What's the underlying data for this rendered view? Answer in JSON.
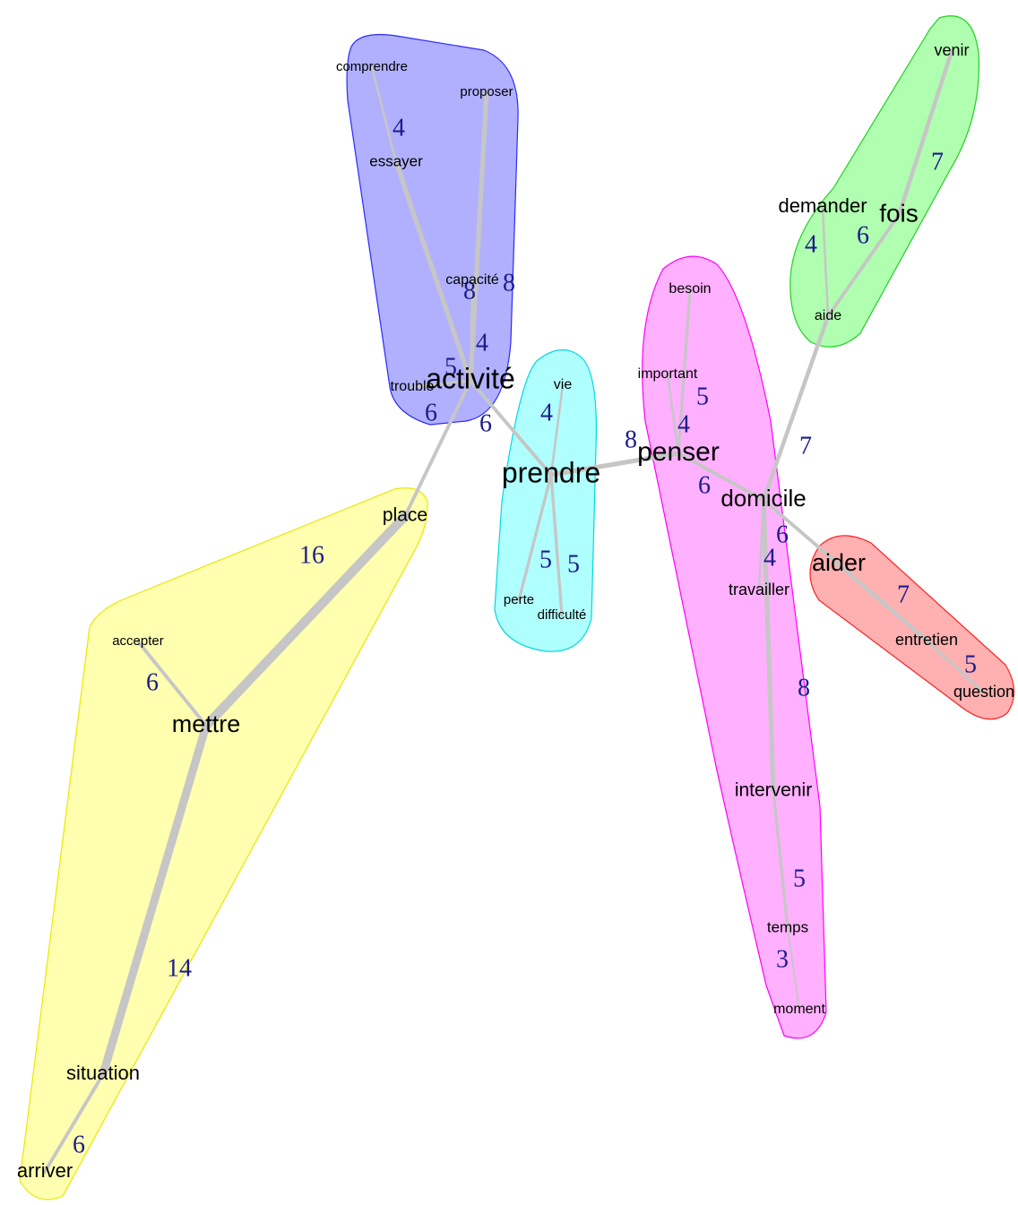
{
  "nodes": [
    {
      "label": "comprendre"
    },
    {
      "label": "proposer"
    },
    {
      "label": "essayer"
    },
    {
      "label": "capacité"
    },
    {
      "label": "trouble"
    },
    {
      "label": "activité"
    },
    {
      "label": "vie"
    },
    {
      "label": "prendre"
    },
    {
      "label": "perte"
    },
    {
      "label": "difficulté"
    },
    {
      "label": "place"
    },
    {
      "label": "accepter"
    },
    {
      "label": "mettre"
    },
    {
      "label": "situation"
    },
    {
      "label": "arriver"
    },
    {
      "label": "besoin"
    },
    {
      "label": "important"
    },
    {
      "label": "penser"
    },
    {
      "label": "domicile"
    },
    {
      "label": "travailler"
    },
    {
      "label": "intervenir"
    },
    {
      "label": "temps"
    },
    {
      "label": "moment"
    },
    {
      "label": "venir"
    },
    {
      "label": "demander"
    },
    {
      "label": "fois"
    },
    {
      "label": "aide"
    },
    {
      "label": "aider"
    },
    {
      "label": "entretien"
    },
    {
      "label": "question"
    }
  ],
  "edges": [
    {
      "source": 0,
      "target": 2,
      "weight": 4
    },
    {
      "source": 2,
      "target": 5,
      "weight": 8
    },
    {
      "source": 1,
      "target": 5,
      "weight": 8
    },
    {
      "source": 3,
      "target": 5,
      "weight": 4
    },
    {
      "source": 4,
      "target": 5,
      "weight": 5
    },
    {
      "source": 5,
      "target": 10,
      "weight": 6
    },
    {
      "source": 5,
      "target": 7,
      "weight": 6
    },
    {
      "source": 6,
      "target": 7,
      "weight": 4
    },
    {
      "source": 7,
      "target": 8,
      "weight": 5
    },
    {
      "source": 7,
      "target": 9,
      "weight": 5
    },
    {
      "source": 7,
      "target": 17,
      "weight": 8
    },
    {
      "source": 10,
      "target": 12,
      "weight": 16
    },
    {
      "source": 11,
      "target": 12,
      "weight": 6
    },
    {
      "source": 12,
      "target": 13,
      "weight": 14
    },
    {
      "source": 13,
      "target": 14,
      "weight": 6
    },
    {
      "source": 15,
      "target": 17,
      "weight": 5
    },
    {
      "source": 16,
      "target": 17,
      "weight": 4
    },
    {
      "source": 17,
      "target": 18,
      "weight": 6
    },
    {
      "source": 18,
      "target": 26,
      "weight": 7
    },
    {
      "source": 26,
      "target": 25,
      "weight": 6
    },
    {
      "source": 24,
      "target": 26,
      "weight": 4
    },
    {
      "source": 25,
      "target": 23,
      "weight": 7
    },
    {
      "source": 18,
      "target": 27,
      "weight": 6
    },
    {
      "source": 18,
      "target": 19,
      "weight": 4
    },
    {
      "source": 27,
      "target": 28,
      "weight": 7
    },
    {
      "source": 28,
      "target": 29,
      "weight": 5
    },
    {
      "source": 18,
      "target": 20,
      "weight": 8
    },
    {
      "source": 20,
      "target": 21,
      "weight": 5
    },
    {
      "source": 21,
      "target": 22,
      "weight": 3
    }
  ],
  "clusters": [
    {
      "color": "#b0b0ff",
      "stroke": "#2a2aff"
    },
    {
      "color": "#b0ffff",
      "stroke": "#00d8e0"
    },
    {
      "color": "#ffffb0",
      "stroke": "#e8e800"
    },
    {
      "color": "#ffb0ff",
      "stroke": "#ff00ff"
    },
    {
      "color": "#b0ffb0",
      "stroke": "#20d020"
    },
    {
      "color": "#ffb0b0",
      "stroke": "#ff2020"
    }
  ]
}
